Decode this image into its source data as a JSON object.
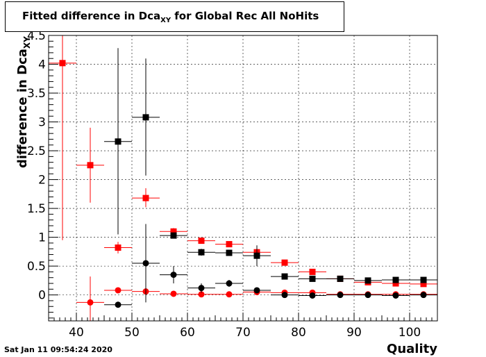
{
  "title": {
    "main": "Fitted difference in Dca",
    "sub": "XY",
    "tail": " for Global Rec All NoHits"
  },
  "timestamp": "Sat Jan 11 09:54:24 2020",
  "chart_data": {
    "type": "scatter",
    "xlabel": "Quality",
    "ylabel": {
      "main": "difference in Dca",
      "sub": "XY"
    },
    "xlim": [
      35,
      105
    ],
    "ylim": [
      -0.45,
      4.5
    ],
    "grid": true,
    "x_ticks": [
      40,
      50,
      60,
      70,
      80,
      90,
      100
    ],
    "y_ticks": [
      0,
      0.5,
      1,
      1.5,
      2,
      2.5,
      3,
      3.5,
      4,
      4.5
    ],
    "x_tick_labels": [
      "40",
      "50",
      "60",
      "70",
      "80",
      "90",
      "100"
    ],
    "y_tick_labels": [
      "0",
      "0.5",
      "1",
      "1.5",
      "2",
      "2.5",
      "3",
      "3.5",
      "4",
      "4.5"
    ],
    "series": [
      {
        "marker": "square",
        "color": "#ff0000",
        "points": [
          {
            "x": 37.5,
            "y": 4.02,
            "xerr": 2.5,
            "ylo": 0.95,
            "yhi": 4.5
          },
          {
            "x": 42.5,
            "y": 2.25,
            "xerr": 2.5,
            "ylo": 1.6,
            "yhi": 2.9
          },
          {
            "x": 47.5,
            "y": 0.82,
            "xerr": 2.5,
            "ylo": 0.72,
            "yhi": 0.92
          },
          {
            "x": 52.5,
            "y": 1.68,
            "xerr": 2.5,
            "ylo": 1.52,
            "yhi": 1.85
          },
          {
            "x": 57.5,
            "y": 1.1,
            "xerr": 2.5,
            "ylo": 1.04,
            "yhi": 1.16
          },
          {
            "x": 62.5,
            "y": 0.94,
            "xerr": 2.5,
            "ylo": 0.9,
            "yhi": 0.98
          },
          {
            "x": 67.5,
            "y": 0.88,
            "xerr": 2.5,
            "ylo": 0.85,
            "yhi": 0.91
          },
          {
            "x": 72.5,
            "y": 0.74,
            "xerr": 2.5,
            "ylo": 0.71,
            "yhi": 0.77
          },
          {
            "x": 77.5,
            "y": 0.56,
            "xerr": 2.5,
            "ylo": 0.54,
            "yhi": 0.58
          },
          {
            "x": 82.5,
            "y": 0.4,
            "xerr": 2.5,
            "ylo": 0.38,
            "yhi": 0.42
          },
          {
            "x": 87.5,
            "y": 0.28,
            "xerr": 2.5,
            "ylo": 0.27,
            "yhi": 0.29
          },
          {
            "x": 92.5,
            "y": 0.22,
            "xerr": 2.5,
            "ylo": 0.21,
            "yhi": 0.23
          },
          {
            "x": 97.5,
            "y": 0.2,
            "xerr": 2.5,
            "ylo": 0.19,
            "yhi": 0.21
          },
          {
            "x": 102.5,
            "y": 0.19,
            "xerr": 2.5,
            "ylo": 0.18,
            "yhi": 0.2
          }
        ]
      },
      {
        "marker": "square",
        "color": "#000000",
        "points": [
          {
            "x": 47.5,
            "y": 2.66,
            "xerr": 2.5,
            "ylo": 1.05,
            "yhi": 4.28
          },
          {
            "x": 52.5,
            "y": 3.08,
            "xerr": 2.5,
            "ylo": 2.07,
            "yhi": 4.1
          },
          {
            "x": 57.5,
            "y": 1.03,
            "xerr": 2.5,
            "ylo": 0.98,
            "yhi": 1.08
          },
          {
            "x": 62.5,
            "y": 0.74,
            "xerr": 2.5,
            "ylo": 0.68,
            "yhi": 0.8
          },
          {
            "x": 67.5,
            "y": 0.73,
            "xerr": 2.5,
            "ylo": 0.68,
            "yhi": 0.78
          },
          {
            "x": 72.5,
            "y": 0.68,
            "xerr": 2.5,
            "ylo": 0.5,
            "yhi": 0.86
          },
          {
            "x": 77.5,
            "y": 0.32,
            "xerr": 2.5,
            "ylo": 0.3,
            "yhi": 0.34
          },
          {
            "x": 82.5,
            "y": 0.28,
            "xerr": 2.5,
            "ylo": 0.26,
            "yhi": 0.3
          },
          {
            "x": 87.5,
            "y": 0.28,
            "xerr": 2.5,
            "ylo": 0.26,
            "yhi": 0.3
          },
          {
            "x": 92.5,
            "y": 0.25,
            "xerr": 2.5,
            "ylo": 0.23,
            "yhi": 0.27
          },
          {
            "x": 97.5,
            "y": 0.26,
            "xerr": 2.5,
            "ylo": 0.24,
            "yhi": 0.28
          },
          {
            "x": 102.5,
            "y": 0.26,
            "xerr": 2.5,
            "ylo": 0.24,
            "yhi": 0.28
          }
        ]
      },
      {
        "marker": "circle",
        "color": "#ff0000",
        "points": [
          {
            "x": 42.5,
            "y": -0.13,
            "xerr": 2.5,
            "ylo": -0.45,
            "yhi": 0.32
          },
          {
            "x": 47.5,
            "y": 0.08,
            "xerr": 2.5,
            "ylo": 0.04,
            "yhi": 0.12
          },
          {
            "x": 52.5,
            "y": 0.06,
            "xerr": 2.5,
            "ylo": 0.03,
            "yhi": 0.09
          },
          {
            "x": 57.5,
            "y": 0.02,
            "xerr": 2.5,
            "ylo": 0.01,
            "yhi": 0.03
          },
          {
            "x": 62.5,
            "y": 0.01,
            "xerr": 2.5,
            "ylo": 0.0,
            "yhi": 0.02
          },
          {
            "x": 67.5,
            "y": 0.01,
            "xerr": 2.5,
            "ylo": 0.0,
            "yhi": 0.02
          },
          {
            "x": 72.5,
            "y": 0.05,
            "xerr": 2.5,
            "ylo": 0.03,
            "yhi": 0.07
          },
          {
            "x": 77.5,
            "y": 0.04,
            "xerr": 2.5,
            "ylo": 0.03,
            "yhi": 0.05
          },
          {
            "x": 82.5,
            "y": 0.04,
            "xerr": 2.5,
            "ylo": 0.03,
            "yhi": 0.05
          },
          {
            "x": 87.5,
            "y": 0.01,
            "xerr": 2.5,
            "ylo": 0.0,
            "yhi": 0.02
          },
          {
            "x": 92.5,
            "y": 0.01,
            "xerr": 2.5,
            "ylo": 0.0,
            "yhi": 0.02
          },
          {
            "x": 97.5,
            "y": 0.01,
            "xerr": 2.5,
            "ylo": 0.0,
            "yhi": 0.02
          },
          {
            "x": 102.5,
            "y": 0.01,
            "xerr": 2.5,
            "ylo": 0.0,
            "yhi": 0.02
          }
        ]
      },
      {
        "marker": "circle",
        "color": "#000000",
        "points": [
          {
            "x": 47.5,
            "y": -0.17,
            "xerr": 2.5,
            "ylo": -0.22,
            "yhi": -0.12
          },
          {
            "x": 52.5,
            "y": 0.55,
            "xerr": 2.5,
            "ylo": -0.13,
            "yhi": 1.23
          },
          {
            "x": 57.5,
            "y": 0.35,
            "xerr": 2.5,
            "ylo": 0.2,
            "yhi": 0.5
          },
          {
            "x": 62.5,
            "y": 0.12,
            "xerr": 2.5,
            "ylo": 0.04,
            "yhi": 0.2
          },
          {
            "x": 67.5,
            "y": 0.2,
            "xerr": 2.5,
            "ylo": 0.14,
            "yhi": 0.26
          },
          {
            "x": 72.5,
            "y": 0.08,
            "xerr": 2.5,
            "ylo": 0.04,
            "yhi": 0.12
          },
          {
            "x": 77.5,
            "y": 0.0,
            "xerr": 2.5,
            "ylo": -0.01,
            "yhi": 0.01
          },
          {
            "x": 82.5,
            "y": -0.01,
            "xerr": 2.5,
            "ylo": -0.02,
            "yhi": 0.0
          },
          {
            "x": 87.5,
            "y": 0.0,
            "xerr": 2.5,
            "ylo": -0.01,
            "yhi": 0.01
          },
          {
            "x": 92.5,
            "y": 0.0,
            "xerr": 2.5,
            "ylo": -0.01,
            "yhi": 0.01
          },
          {
            "x": 97.5,
            "y": -0.01,
            "xerr": 2.5,
            "ylo": -0.02,
            "yhi": 0.0
          },
          {
            "x": 102.5,
            "y": 0.0,
            "xerr": 2.5,
            "ylo": -0.01,
            "yhi": 0.01
          }
        ]
      }
    ]
  }
}
